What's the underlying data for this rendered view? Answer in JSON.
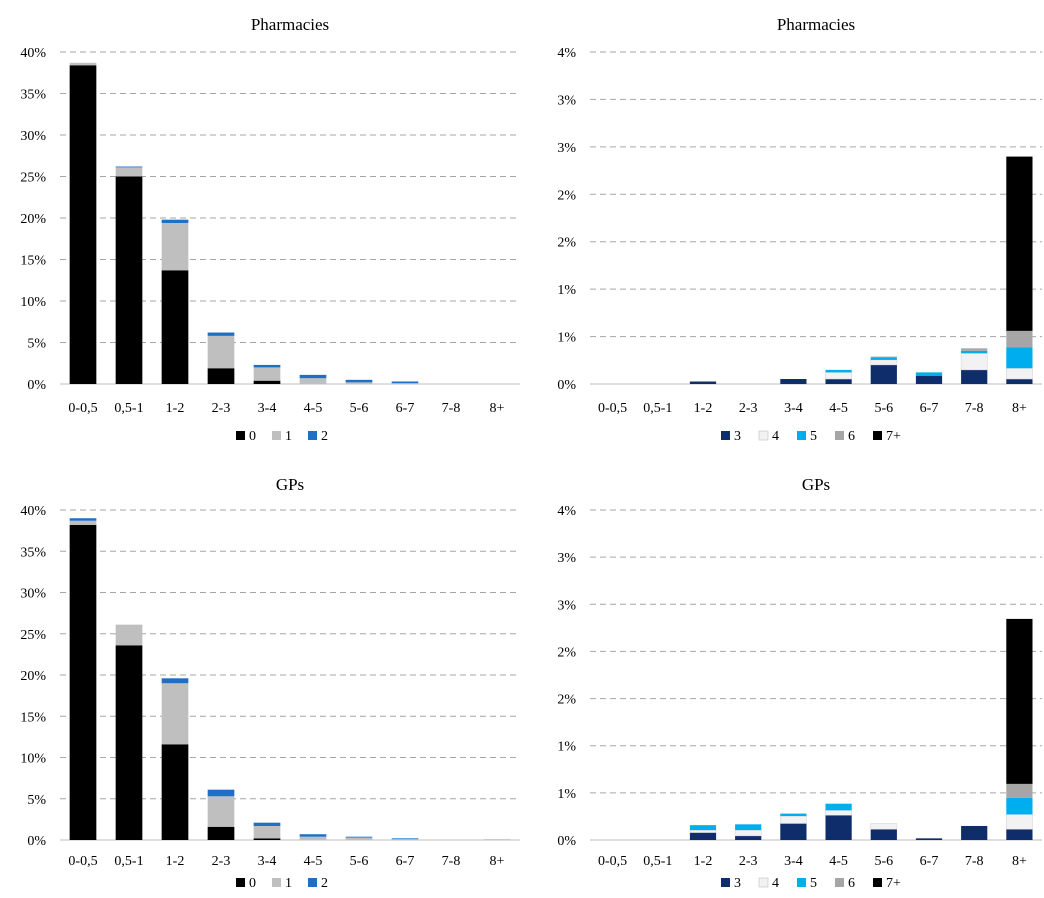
{
  "colors": {
    "0": "#000000",
    "1": "#bfbfbf",
    "2": "#1f6fc4",
    "3": "#0f2d6b",
    "4": "#f2f2f2",
    "5": "#00aeef",
    "6": "#a6a6a6",
    "7+": "#000000"
  },
  "chart_data": [
    {
      "type": "bar",
      "stacked": true,
      "title": "Pharmacies",
      "categories": [
        "0-0,5",
        "0,5-1",
        "1-2",
        "2-3",
        "3-4",
        "4-5",
        "5-6",
        "6-7",
        "7-8",
        "8+"
      ],
      "y_ticks": [
        "0%",
        "5%",
        "10%",
        "15%",
        "20%",
        "25%",
        "30%",
        "35%",
        "40%"
      ],
      "ylim": [
        0,
        40
      ],
      "grid": true,
      "legend_position": "bottom",
      "series": [
        {
          "name": "0",
          "values": [
            38.4,
            25.0,
            13.7,
            1.9,
            0.4,
            0.0,
            0.0,
            0.0,
            0.0,
            0.0
          ]
        },
        {
          "name": "1",
          "values": [
            0.3,
            1.1,
            5.7,
            3.9,
            1.6,
            0.7,
            0.2,
            0.1,
            0.0,
            0.0
          ]
        },
        {
          "name": "2",
          "values": [
            0.0,
            0.1,
            0.4,
            0.4,
            0.3,
            0.4,
            0.3,
            0.2,
            0.0,
            0.0
          ]
        }
      ]
    },
    {
      "type": "bar",
      "stacked": true,
      "title": "Pharmacies",
      "categories": [
        "0-0,5",
        "0,5-1",
        "1-2",
        "2-3",
        "3-4",
        "4-5",
        "5-6",
        "6-7",
        "7-8",
        "8+"
      ],
      "y_ticks": [
        "0%",
        "1%",
        "1%",
        "2%",
        "2%",
        "3%",
        "3%",
        "4%"
      ],
      "ylim": [
        0,
        4
      ],
      "grid": true,
      "legend_position": "bottom",
      "series": [
        {
          "name": "3",
          "values": [
            0.0,
            0.0,
            0.03,
            0.0,
            0.06,
            0.06,
            0.23,
            0.1,
            0.17,
            0.06
          ]
        },
        {
          "name": "4",
          "values": [
            0.0,
            0.0,
            0.0,
            0.0,
            0.0,
            0.08,
            0.06,
            0.0,
            0.2,
            0.13
          ]
        },
        {
          "name": "5",
          "values": [
            0.0,
            0.0,
            0.0,
            0.0,
            0.0,
            0.03,
            0.03,
            0.04,
            0.03,
            0.25
          ]
        },
        {
          "name": "6",
          "values": [
            0.0,
            0.0,
            0.0,
            0.0,
            0.0,
            0.0,
            0.01,
            0.0,
            0.03,
            0.2
          ]
        },
        {
          "name": "7+",
          "values": [
            0.0,
            0.0,
            0.0,
            0.0,
            0.0,
            0.0,
            0.0,
            0.0,
            0.0,
            2.1
          ]
        }
      ]
    },
    {
      "type": "bar",
      "stacked": true,
      "title": "GPs",
      "categories": [
        "0-0,5",
        "0,5-1",
        "1-2",
        "2-3",
        "3-4",
        "4-5",
        "5-6",
        "6-7",
        "7-8",
        "8+"
      ],
      "y_ticks": [
        "0%",
        "5%",
        "10%",
        "15%",
        "20%",
        "25%",
        "30%",
        "35%",
        "40%"
      ],
      "ylim": [
        0,
        40
      ],
      "grid": true,
      "legend_position": "bottom",
      "series": [
        {
          "name": "0",
          "values": [
            38.2,
            23.6,
            11.6,
            1.6,
            0.2,
            0.0,
            0.0,
            0.0,
            0.0,
            0.0
          ]
        },
        {
          "name": "1",
          "values": [
            0.5,
            2.5,
            7.4,
            3.7,
            1.5,
            0.4,
            0.3,
            0.1,
            0.0,
            0.1
          ]
        },
        {
          "name": "2",
          "values": [
            0.3,
            0.0,
            0.6,
            0.8,
            0.4,
            0.3,
            0.1,
            0.1,
            0.0,
            0.0
          ]
        }
      ]
    },
    {
      "type": "bar",
      "stacked": true,
      "title": "GPs",
      "categories": [
        "0-0,5",
        "0,5-1",
        "1-2",
        "2-3",
        "3-4",
        "4-5",
        "5-6",
        "6-7",
        "7-8",
        "8+"
      ],
      "y_ticks": [
        "0%",
        "1%",
        "1%",
        "2%",
        "2%",
        "3%",
        "3%",
        "4%"
      ],
      "ylim": [
        0,
        4
      ],
      "grid": true,
      "legend_position": "bottom",
      "series": [
        {
          "name": "3",
          "values": [
            0.0,
            0.0,
            0.09,
            0.05,
            0.2,
            0.3,
            0.13,
            0.02,
            0.17,
            0.13
          ]
        },
        {
          "name": "4",
          "values": [
            0.0,
            0.0,
            0.03,
            0.07,
            0.09,
            0.06,
            0.07,
            0.0,
            0.0,
            0.18
          ]
        },
        {
          "name": "5",
          "values": [
            0.0,
            0.0,
            0.06,
            0.07,
            0.03,
            0.08,
            0.0,
            0.0,
            0.0,
            0.2
          ]
        },
        {
          "name": "6",
          "values": [
            0.0,
            0.0,
            0.0,
            0.0,
            0.0,
            0.0,
            0.0,
            0.0,
            0.0,
            0.17
          ]
        },
        {
          "name": "7+",
          "values": [
            0.0,
            0.0,
            0.0,
            0.0,
            0.0,
            0.0,
            0.0,
            0.0,
            0.0,
            2.0
          ]
        }
      ]
    }
  ]
}
